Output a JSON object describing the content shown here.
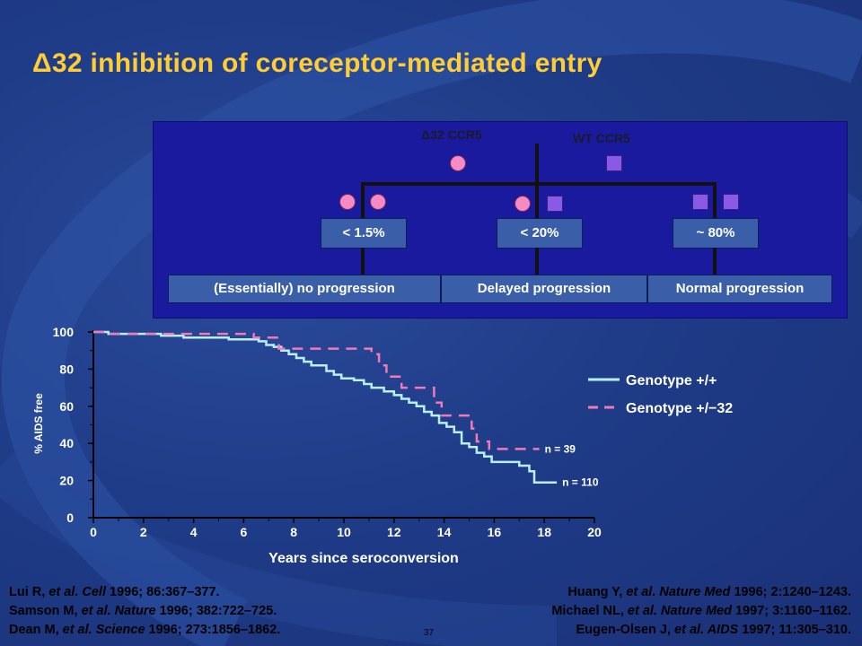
{
  "title": "Δ32 inhibition of coreceptor-mediated entry",
  "diagram": {
    "delta32_label": "Δ32 CCR5",
    "wt_label": "WT CCR5",
    "pct_boxes": [
      "< 1.5%",
      "< 20%",
      "~ 80%"
    ],
    "outcome_boxes": [
      "(Essentially) no progression",
      "Delayed progression",
      "Normal progression"
    ],
    "circle_color": "#f58ac4",
    "square_color": "#8a5ae6"
  },
  "chart_data": {
    "type": "line",
    "title": "",
    "xlabel": "Years since seroconversion",
    "ylabel": "% AIDS free",
    "xlim": [
      0,
      20
    ],
    "ylim": [
      0,
      100
    ],
    "x_ticks": [
      "0",
      "2",
      "4",
      "6",
      "8",
      "10",
      "12",
      "14",
      "16",
      "18",
      "20"
    ],
    "y_ticks": [
      "0",
      "20",
      "40",
      "60",
      "80",
      "100"
    ],
    "legend_position": "right",
    "series": [
      {
        "name": "Genotype +/+",
        "color": "#b8f0ff",
        "style": "solid",
        "end_label": "n = 110",
        "points": [
          [
            0,
            100
          ],
          [
            0.6,
            100
          ],
          [
            0.6,
            99
          ],
          [
            2.7,
            99
          ],
          [
            2.7,
            98
          ],
          [
            3.6,
            98
          ],
          [
            3.6,
            97
          ],
          [
            5.4,
            97
          ],
          [
            5.4,
            96
          ],
          [
            6.6,
            96
          ],
          [
            6.6,
            95
          ],
          [
            6.9,
            95
          ],
          [
            6.9,
            93
          ],
          [
            7.2,
            93
          ],
          [
            7.2,
            92
          ],
          [
            7.5,
            92
          ],
          [
            7.5,
            90
          ],
          [
            7.8,
            90
          ],
          [
            7.8,
            88
          ],
          [
            8.1,
            88
          ],
          [
            8.1,
            86
          ],
          [
            8.4,
            86
          ],
          [
            8.4,
            84
          ],
          [
            8.7,
            84
          ],
          [
            8.7,
            82
          ],
          [
            9.3,
            82
          ],
          [
            9.3,
            79
          ],
          [
            9.6,
            79
          ],
          [
            9.6,
            77
          ],
          [
            9.9,
            77
          ],
          [
            9.9,
            75
          ],
          [
            10.4,
            75
          ],
          [
            10.4,
            74
          ],
          [
            10.8,
            74
          ],
          [
            10.8,
            72
          ],
          [
            11.1,
            72
          ],
          [
            11.1,
            70
          ],
          [
            11.6,
            70
          ],
          [
            11.6,
            68
          ],
          [
            12,
            68
          ],
          [
            12,
            66
          ],
          [
            12.3,
            66
          ],
          [
            12.3,
            64
          ],
          [
            12.6,
            64
          ],
          [
            12.6,
            62
          ],
          [
            12.9,
            62
          ],
          [
            12.9,
            60
          ],
          [
            13.2,
            60
          ],
          [
            13.2,
            57
          ],
          [
            13.5,
            57
          ],
          [
            13.5,
            55
          ],
          [
            13.8,
            55
          ],
          [
            13.8,
            51
          ],
          [
            14.1,
            51
          ],
          [
            14.1,
            49
          ],
          [
            14.4,
            49
          ],
          [
            14.4,
            46
          ],
          [
            14.7,
            46
          ],
          [
            14.7,
            40
          ],
          [
            15,
            40
          ],
          [
            15,
            38
          ],
          [
            15.3,
            38
          ],
          [
            15.3,
            35
          ],
          [
            15.6,
            35
          ],
          [
            15.6,
            33
          ],
          [
            15.9,
            33
          ],
          [
            15.9,
            30
          ],
          [
            17,
            30
          ],
          [
            17,
            28
          ],
          [
            17.4,
            28
          ],
          [
            17.4,
            25
          ],
          [
            17.6,
            25
          ],
          [
            17.6,
            19
          ],
          [
            18.5,
            19
          ]
        ]
      },
      {
        "name": "Genotype +/−32",
        "color": "#f07ab8",
        "style": "dashed",
        "end_label": "n = 39",
        "points": [
          [
            0,
            100
          ],
          [
            0.5,
            100
          ],
          [
            0.5,
            99
          ],
          [
            6.4,
            99
          ],
          [
            6.4,
            97
          ],
          [
            7.4,
            97
          ],
          [
            7.4,
            91
          ],
          [
            11.1,
            91
          ],
          [
            11.1,
            88
          ],
          [
            11.4,
            88
          ],
          [
            11.4,
            82
          ],
          [
            11.7,
            82
          ],
          [
            11.7,
            76
          ],
          [
            12.3,
            76
          ],
          [
            12.3,
            70
          ],
          [
            13.6,
            70
          ],
          [
            13.6,
            62
          ],
          [
            13.9,
            62
          ],
          [
            13.9,
            55
          ],
          [
            15.1,
            55
          ],
          [
            15.1,
            48
          ],
          [
            15.3,
            48
          ],
          [
            15.3,
            41
          ],
          [
            15.8,
            41
          ],
          [
            15.8,
            37
          ],
          [
            17.8,
            37
          ],
          [
            17.8,
            37
          ]
        ]
      }
    ]
  },
  "refs_left": {
    "line1_author": "Lui R, ",
    "line1_etal": "et al. Cell",
    "line1_rest": " 1996; 86:367–377.",
    "line2_author": "Samson M, ",
    "line2_etal": "et al. Nature",
    "line2_rest": " 1996; 382:722–725.",
    "line3_author": "Dean M, ",
    "line3_etal": "et al. Science",
    "line3_rest": " 1996; 273:1856–1862."
  },
  "refs_right": {
    "line1_author": "Huang Y, ",
    "line1_etal": "et al. Nature Med",
    "line1_rest": " 1996; 2:1240–1243.",
    "line2_author": "Michael NL, ",
    "line2_etal": "et al. Nature Med",
    "line2_rest": " 1997; 3:1160–1162.",
    "line3_author": "Eugen-Olsen J, ",
    "line3_etal": "et al. AIDS",
    "line3_rest": " 1997; 11:305–310."
  },
  "page_number": "37"
}
